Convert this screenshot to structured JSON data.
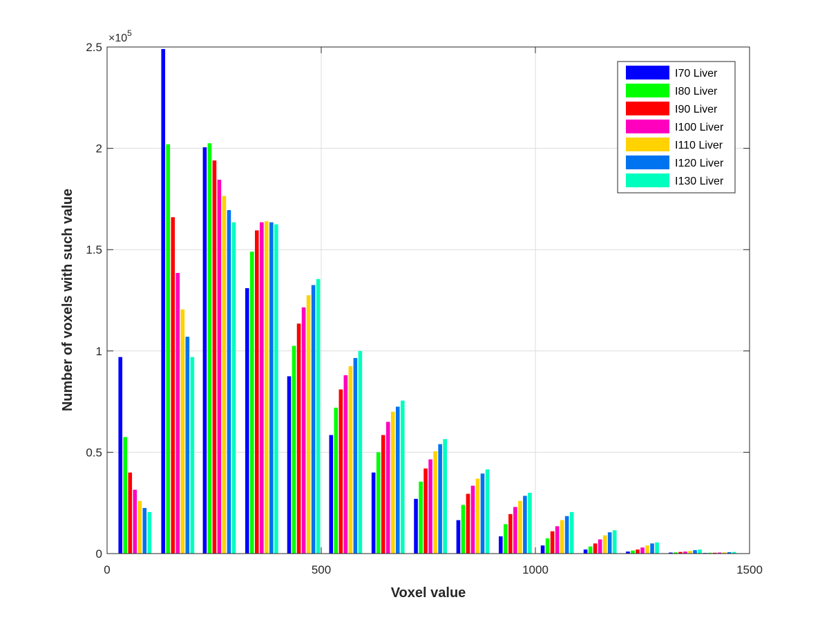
{
  "chart_data": {
    "type": "bar",
    "title": "",
    "xlabel": "Voxel value",
    "ylabel": "Number of voxels with such value",
    "y_exponent_base": "×10",
    "y_exponent_power": "5",
    "xlim": [
      0,
      1500
    ],
    "ylim": [
      0,
      2.5
    ],
    "y_scale_factor": 100000,
    "xticks": [
      0,
      500,
      1000,
      1500
    ],
    "xtick_labels": [
      "0",
      "500",
      "1000",
      "1500"
    ],
    "yticks": [
      0,
      0.5,
      1,
      1.5,
      2,
      2.5
    ],
    "ytick_labels": [
      "0",
      "0.5",
      "1",
      "1.5",
      "2",
      "2.5"
    ],
    "grid": true,
    "legend_position": "top-right",
    "bin_centers": [
      65,
      165,
      262,
      361,
      459,
      557,
      656,
      755,
      854,
      953,
      1051,
      1151,
      1250,
      1350,
      1430
    ],
    "bin_width_data": 99,
    "series": [
      {
        "name": "I70 Liver",
        "color": "#0000ff",
        "values": [
          0.97,
          2.49,
          2.005,
          1.31,
          0.875,
          0.585,
          0.4,
          0.27,
          0.165,
          0.085,
          0.04,
          0.02,
          0.01,
          0.005,
          0.003
        ]
      },
      {
        "name": "I80 Liver",
        "color": "#00ff00",
        "values": [
          0.575,
          2.02,
          2.025,
          1.49,
          1.025,
          0.72,
          0.5,
          0.355,
          0.24,
          0.145,
          0.075,
          0.035,
          0.015,
          0.006,
          0.004
        ]
      },
      {
        "name": "I90 Liver",
        "color": "#ff0000",
        "values": [
          0.4,
          1.66,
          1.94,
          1.595,
          1.135,
          0.81,
          0.585,
          0.42,
          0.295,
          0.195,
          0.11,
          0.05,
          0.02,
          0.008,
          0.004
        ]
      },
      {
        "name": "I100 Liver",
        "color": "#ff00bf",
        "values": [
          0.315,
          1.385,
          1.845,
          1.635,
          1.215,
          0.88,
          0.65,
          0.465,
          0.335,
          0.23,
          0.135,
          0.07,
          0.03,
          0.01,
          0.005
        ]
      },
      {
        "name": "I110 Liver",
        "color": "#ffd200",
        "values": [
          0.26,
          1.205,
          1.765,
          1.64,
          1.275,
          0.925,
          0.7,
          0.505,
          0.37,
          0.26,
          0.165,
          0.09,
          0.04,
          0.013,
          0.006
        ]
      },
      {
        "name": "I120 Liver",
        "color": "#0073f0",
        "values": [
          0.225,
          1.07,
          1.695,
          1.635,
          1.325,
          0.965,
          0.725,
          0.54,
          0.395,
          0.285,
          0.185,
          0.105,
          0.05,
          0.017,
          0.007
        ]
      },
      {
        "name": "I130 Liver",
        "color": "#00ffbf",
        "values": [
          0.205,
          0.97,
          1.635,
          1.625,
          1.355,
          1.0,
          0.755,
          0.565,
          0.415,
          0.3,
          0.205,
          0.115,
          0.055,
          0.02,
          0.008
        ]
      }
    ]
  }
}
